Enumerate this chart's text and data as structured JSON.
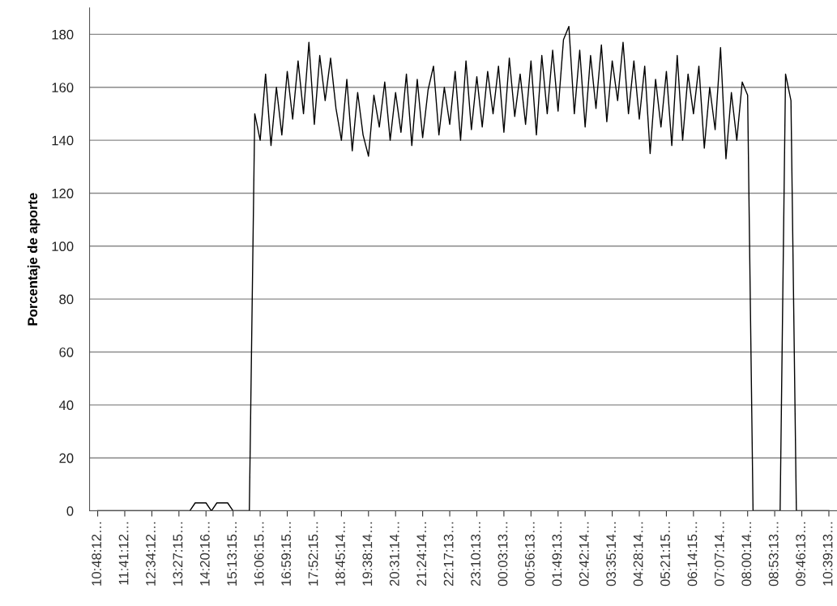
{
  "chart_data": {
    "type": "line",
    "ylabel": "Porcentaje de aporte",
    "ylim": [
      0,
      190
    ],
    "yticks": [
      0,
      20,
      40,
      60,
      80,
      100,
      120,
      140,
      160,
      180
    ],
    "categories": [
      "10:48:12…",
      null,
      null,
      null,
      null,
      "11:41:12…",
      null,
      null,
      null,
      null,
      "12:34:12…",
      null,
      null,
      null,
      null,
      "13:27:15…",
      null,
      null,
      null,
      null,
      "14:20:16…",
      null,
      null,
      null,
      null,
      "15:13:15…",
      null,
      null,
      null,
      null,
      "16:06:15…",
      null,
      null,
      null,
      null,
      "16:59:15…",
      null,
      null,
      null,
      null,
      "17:52:15…",
      null,
      null,
      null,
      null,
      "18:45:14…",
      null,
      null,
      null,
      null,
      "19:38:14…",
      null,
      null,
      null,
      null,
      "20:31:14…",
      null,
      null,
      null,
      null,
      "21:24:14…",
      null,
      null,
      null,
      null,
      "22:17:13…",
      null,
      null,
      null,
      null,
      "23:10:13…",
      null,
      null,
      null,
      null,
      "00:03:13…",
      null,
      null,
      null,
      null,
      "00:56:13…",
      null,
      null,
      null,
      null,
      "01:49:13…",
      null,
      null,
      null,
      null,
      "02:42:14…",
      null,
      null,
      null,
      null,
      "03:35:14…",
      null,
      null,
      null,
      null,
      "04:28:14…",
      null,
      null,
      null,
      null,
      "05:21:15…",
      null,
      null,
      null,
      null,
      "06:14:15…",
      null,
      null,
      null,
      null,
      "07:07:14…",
      null,
      null,
      null,
      null,
      "08:00:14…",
      null,
      null,
      null,
      null,
      "08:53:13…",
      null,
      null,
      null,
      null,
      "09:46:13…",
      null,
      null,
      null,
      null,
      "10:39:13…"
    ],
    "grid": "y",
    "legend": false,
    "marker": "none",
    "line_style": "solid",
    "series": [
      {
        "color": "#000000",
        "values": [
          0,
          0,
          0,
          0,
          0,
          0,
          0,
          0,
          0,
          0,
          0,
          0,
          0,
          0,
          0,
          0,
          0,
          0,
          3,
          3,
          3,
          0,
          3,
          3,
          3,
          0,
          0,
          0,
          0,
          150,
          140,
          165,
          138,
          160,
          142,
          166,
          148,
          170,
          150,
          177,
          146,
          172,
          155,
          171,
          152,
          140,
          163,
          136,
          158,
          142,
          134,
          157,
          145,
          162,
          140,
          158,
          143,
          165,
          138,
          163,
          141,
          159,
          168,
          142,
          160,
          146,
          166,
          140,
          170,
          144,
          164,
          145,
          166,
          150,
          168,
          143,
          171,
          149,
          165,
          146,
          170,
          142,
          172,
          150,
          174,
          151,
          178,
          183,
          150,
          174,
          145,
          172,
          152,
          176,
          147,
          170,
          155,
          177,
          150,
          170,
          148,
          168,
          135,
          163,
          145,
          166,
          138,
          172,
          140,
          165,
          150,
          168,
          137,
          160,
          144,
          175,
          133,
          158,
          140,
          162,
          157,
          0,
          0,
          0,
          0,
          0,
          0,
          165,
          155,
          0,
          0,
          0,
          0,
          0,
          0,
          0
        ]
      }
    ]
  }
}
